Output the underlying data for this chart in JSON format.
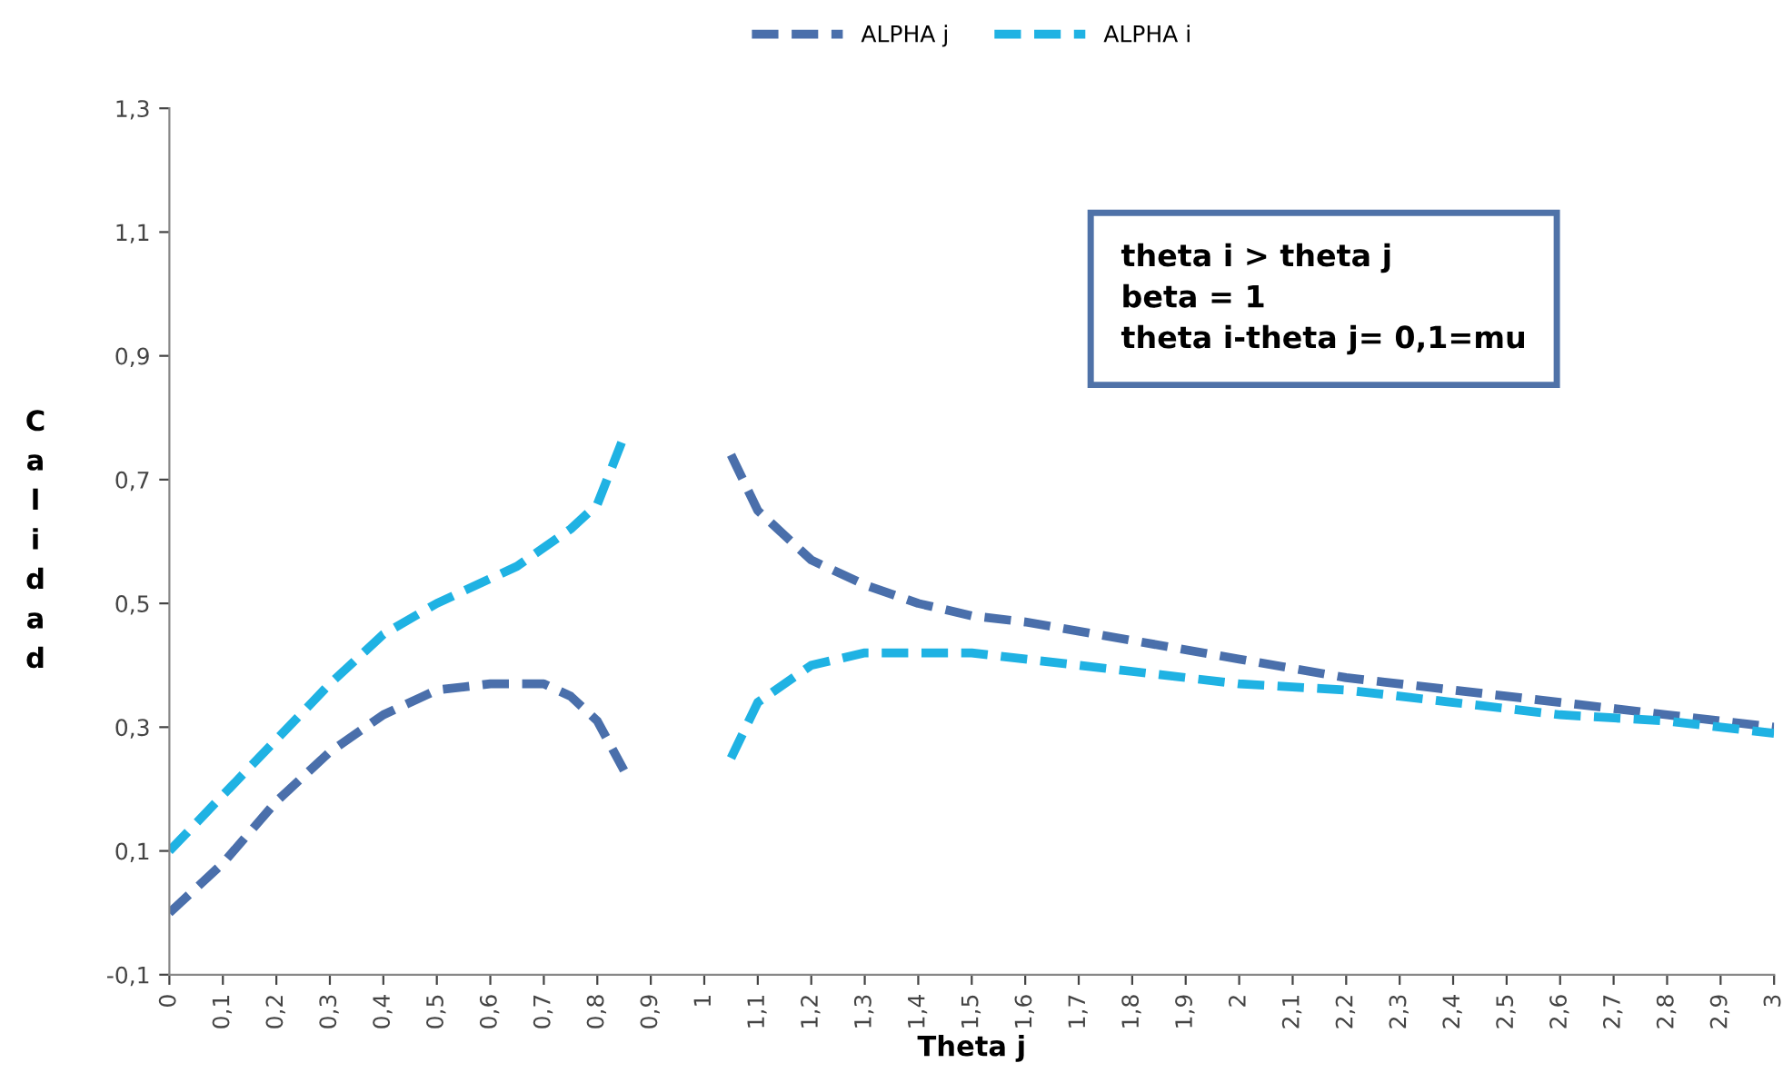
{
  "chart_data": {
    "type": "line",
    "xlabel": "Theta j",
    "ylabel": "Calidad",
    "x": [
      0,
      0.1,
      0.2,
      0.3,
      0.4,
      0.5,
      0.6,
      0.65,
      0.7,
      0.75,
      0.8,
      0.85,
      0.95,
      1.05,
      1.1,
      1.2,
      1.3,
      1.4,
      1.5,
      1.6,
      1.8,
      2.0,
      2.2,
      2.4,
      2.6,
      2.8,
      3.0
    ],
    "series": [
      {
        "name": "ALPHA j",
        "color": "#4a6fab",
        "values": [
          0.0,
          0.08,
          0.18,
          0.26,
          0.32,
          0.36,
          0.37,
          0.37,
          0.37,
          0.35,
          0.31,
          0.23,
          null,
          0.74,
          0.65,
          0.57,
          0.53,
          0.5,
          0.48,
          0.47,
          0.44,
          0.41,
          0.38,
          0.36,
          0.34,
          0.32,
          0.3
        ]
      },
      {
        "name": "ALPHA i",
        "color": "#1fb2e3",
        "values": [
          0.1,
          0.19,
          0.28,
          0.37,
          0.45,
          0.5,
          0.54,
          0.56,
          0.59,
          0.62,
          0.66,
          0.77,
          null,
          0.25,
          0.34,
          0.4,
          0.42,
          0.42,
          0.42,
          0.41,
          0.39,
          0.37,
          0.36,
          0.34,
          0.32,
          0.31,
          0.29
        ]
      }
    ],
    "line_style": "dashed",
    "marker": "none",
    "grid": false,
    "legend": "top",
    "xlim": [
      0,
      3
    ],
    "xticks": [
      {
        "value": 0,
        "label": "0"
      },
      {
        "value": 0.1,
        "label": "0,1"
      },
      {
        "value": 0.2,
        "label": "0,2"
      },
      {
        "value": 0.3,
        "label": "0,3"
      },
      {
        "value": 0.4,
        "label": "0,4"
      },
      {
        "value": 0.5,
        "label": "0,5"
      },
      {
        "value": 0.6,
        "label": "0,6"
      },
      {
        "value": 0.7,
        "label": "0,7"
      },
      {
        "value": 0.8,
        "label": "0,8"
      },
      {
        "value": 0.9,
        "label": "0,9"
      },
      {
        "value": 1,
        "label": "1"
      },
      {
        "value": 1.1,
        "label": "1,1"
      },
      {
        "value": 1.2,
        "label": "1,2"
      },
      {
        "value": 1.3,
        "label": "1,3"
      },
      {
        "value": 1.4,
        "label": "1,4"
      },
      {
        "value": 1.5,
        "label": "1,5"
      },
      {
        "value": 1.6,
        "label": "1,6"
      },
      {
        "value": 1.7,
        "label": "1,7"
      },
      {
        "value": 1.8,
        "label": "1,8"
      },
      {
        "value": 1.9,
        "label": "1,9"
      },
      {
        "value": 2,
        "label": "2"
      },
      {
        "value": 2.1,
        "label": "2,1"
      },
      {
        "value": 2.2,
        "label": "2,2"
      },
      {
        "value": 2.3,
        "label": "2,3"
      },
      {
        "value": 2.4,
        "label": "2,4"
      },
      {
        "value": 2.5,
        "label": "2,5"
      },
      {
        "value": 2.6,
        "label": "2,6"
      },
      {
        "value": 2.7,
        "label": "2,7"
      },
      {
        "value": 2.8,
        "label": "2,8"
      },
      {
        "value": 2.9,
        "label": "2,9"
      },
      {
        "value": 3,
        "label": "3"
      }
    ],
    "ylim": [
      -0.1,
      1.3
    ],
    "yticks": [
      {
        "value": -0.1,
        "label": "-0,1"
      },
      {
        "value": 0.1,
        "label": "0,1"
      },
      {
        "value": 0.3,
        "label": "0,3"
      },
      {
        "value": 0.5,
        "label": "0,5"
      },
      {
        "value": 0.7,
        "label": "0,7"
      },
      {
        "value": 0.9,
        "label": "0,9"
      },
      {
        "value": 1.1,
        "label": "1,1"
      },
      {
        "value": 1.3,
        "label": "1,3"
      }
    ],
    "annotations": [
      "theta i > theta j\nbeta = 1\ntheta i-theta j= 0,1=mu"
    ]
  }
}
